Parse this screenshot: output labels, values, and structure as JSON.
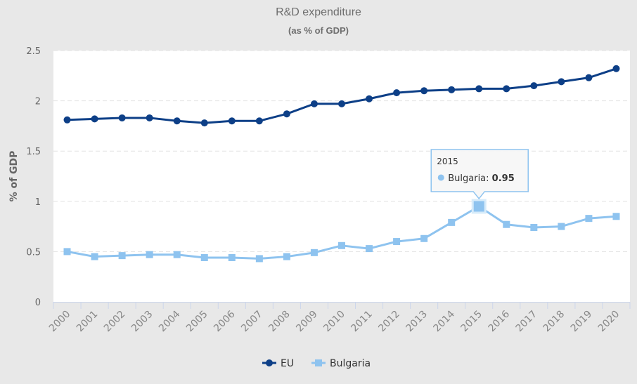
{
  "chart_data": {
    "type": "line",
    "title": "R&D expenditure",
    "subtitle": "(as % of GDP)",
    "xlabel": "",
    "ylabel": "% of GDP",
    "categories": [
      "2000",
      "2001",
      "2002",
      "2003",
      "2004",
      "2005",
      "2006",
      "2007",
      "2008",
      "2009",
      "2010",
      "2011",
      "2012",
      "2013",
      "2014",
      "2015",
      "2016",
      "2017",
      "2018",
      "2019",
      "2020"
    ],
    "ylim": [
      0,
      2.5
    ],
    "yticks": [
      0,
      0.5,
      1,
      1.5,
      2,
      2.5
    ],
    "ytick_labels": [
      "0",
      "0.5",
      "1",
      "1.5",
      "2",
      "2.5"
    ],
    "grid": true,
    "legend_position": "bottom-center",
    "series": [
      {
        "name": "EU",
        "color": "#0d3f87",
        "marker": "circle",
        "values": [
          1.81,
          1.82,
          1.83,
          1.83,
          1.8,
          1.78,
          1.8,
          1.8,
          1.87,
          1.97,
          1.97,
          2.02,
          2.08,
          2.1,
          2.11,
          2.12,
          2.12,
          2.15,
          2.19,
          2.23,
          2.32
        ]
      },
      {
        "name": "Bulgaria",
        "color": "#8ec3ef",
        "marker": "square",
        "values": [
          0.5,
          0.45,
          0.46,
          0.47,
          0.47,
          0.44,
          0.44,
          0.43,
          0.45,
          0.49,
          0.56,
          0.53,
          0.6,
          0.63,
          0.79,
          0.95,
          0.77,
          0.74,
          0.75,
          0.83,
          0.85
        ]
      }
    ],
    "tooltip": {
      "year": "2015",
      "series_label": "Bulgaria:",
      "value": "0.95"
    }
  }
}
